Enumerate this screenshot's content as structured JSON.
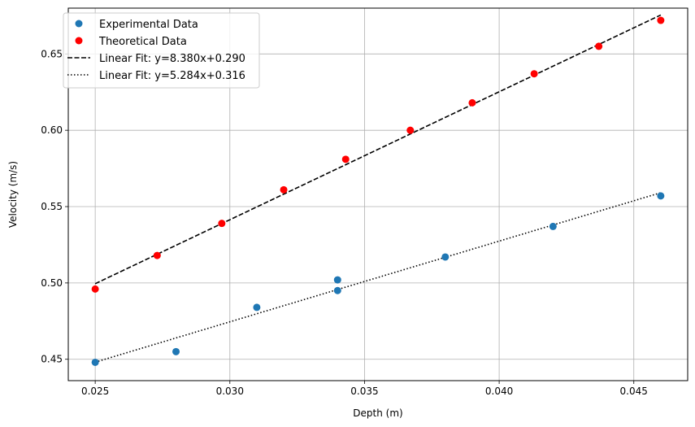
{
  "chart_data": {
    "type": "scatter",
    "title": "",
    "xlabel": "Depth (m)",
    "ylabel": "Velocity (m/s)",
    "xlim": [
      0.024,
      0.047
    ],
    "ylim": [
      0.436,
      0.68
    ],
    "xticks": [
      0.025,
      0.03,
      0.035,
      0.04,
      0.045
    ],
    "xtick_labels": [
      "0.025",
      "0.030",
      "0.035",
      "0.040",
      "0.045"
    ],
    "yticks": [
      0.45,
      0.5,
      0.55,
      0.6,
      0.65
    ],
    "ytick_labels": [
      "0.45",
      "0.50",
      "0.55",
      "0.60",
      "0.65"
    ],
    "grid": true,
    "legend_position": "top-left",
    "series": [
      {
        "name": "Experimental Data",
        "kind": "scatter",
        "color": "#1f77b4",
        "x": [
          0.025,
          0.028,
          0.031,
          0.034,
          0.034,
          0.038,
          0.042,
          0.046
        ],
        "y": [
          0.448,
          0.455,
          0.484,
          0.495,
          0.502,
          0.517,
          0.537,
          0.557
        ]
      },
      {
        "name": "Theoretical Data",
        "kind": "scatter",
        "color": "#ff0000",
        "x": [
          0.025,
          0.0273,
          0.0297,
          0.032,
          0.0343,
          0.0367,
          0.039,
          0.0413,
          0.0437,
          0.046
        ],
        "y": [
          0.496,
          0.518,
          0.539,
          0.561,
          0.581,
          0.6,
          0.618,
          0.637,
          0.655,
          0.672
        ]
      },
      {
        "name": "Linear Fit: y=8.380x+0.290",
        "kind": "line",
        "style": "dashed",
        "color": "#000000",
        "x": [
          0.025,
          0.046
        ],
        "y": [
          0.4995,
          0.6755
        ]
      },
      {
        "name": "Linear Fit: y=5.284x+0.316",
        "kind": "line",
        "style": "dotted",
        "color": "#000000",
        "x": [
          0.025,
          0.046
        ],
        "y": [
          0.4481,
          0.5591
        ]
      }
    ]
  }
}
